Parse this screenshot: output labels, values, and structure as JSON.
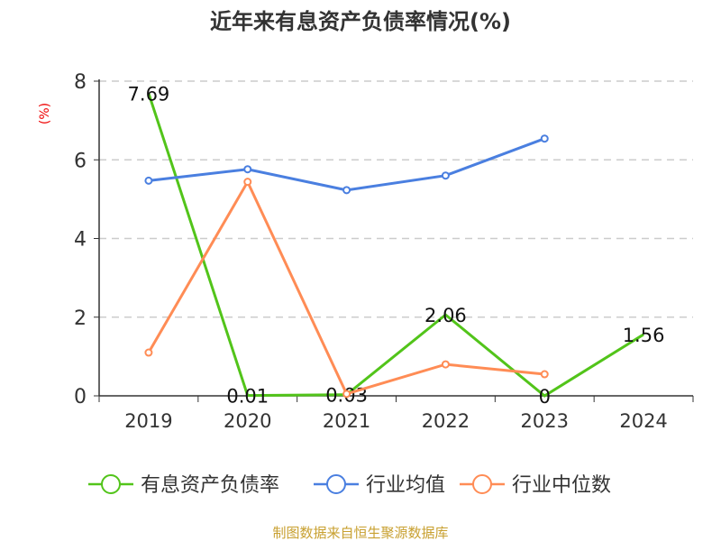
{
  "chart_data": {
    "type": "line",
    "title": "近年来有息资产负债率情况(%)",
    "ylabel": "(%)",
    "xlabel": "",
    "categories": [
      "2019",
      "2020",
      "2021",
      "2022",
      "2023",
      "2024"
    ],
    "ylim": [
      0,
      8
    ],
    "yticks": [
      0,
      2,
      4,
      6,
      8
    ],
    "grid": true,
    "legend_position": "bottom",
    "series": [
      {
        "name": "有息资产负债率",
        "color": "#52c41a",
        "values": [
          7.69,
          0.01,
          0.03,
          2.06,
          0,
          1.56
        ],
        "labels": [
          "7.69",
          "0.01",
          "0.03",
          "2.06",
          "0",
          "1.56"
        ],
        "markers": false
      },
      {
        "name": "行业均值",
        "color": "#4a7fe0",
        "values": [
          5.47,
          5.76,
          5.23,
          5.6,
          6.54,
          null
        ],
        "markers": true
      },
      {
        "name": "行业中位数",
        "color": "#ff8c55",
        "values": [
          1.1,
          5.44,
          0.05,
          0.8,
          0.55,
          null
        ],
        "markers": true
      }
    ],
    "source": "制图数据来自恒生聚源数据库"
  }
}
